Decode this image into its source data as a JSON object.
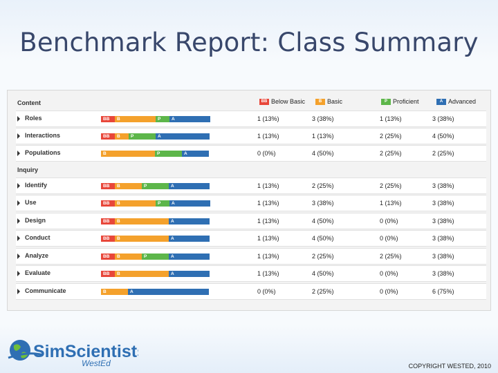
{
  "slide": {
    "title": "Benchmark Report: Class Summary",
    "copyright": "COPYRIGHT WESTED, 2010"
  },
  "logo": {
    "name": "SimScientists",
    "sub": "WestEd"
  },
  "colors": {
    "below_basic": "#e8473a",
    "basic": "#f4a12c",
    "proficient": "#5db64a",
    "advanced": "#2f6fb3"
  },
  "header": {
    "content": "Content",
    "legend": [
      {
        "abbr": "BB",
        "label": "Below Basic",
        "color": "#e8473a"
      },
      {
        "abbr": "B",
        "label": "Basic",
        "color": "#f4a12c"
      },
      {
        "abbr": "P",
        "label": "Proficient",
        "color": "#5db64a"
      },
      {
        "abbr": "A",
        "label": "Advanced",
        "color": "#2f6fb3"
      }
    ]
  },
  "rows": [
    {
      "type": "data",
      "label": "Roles",
      "bb": "1 (13%)",
      "b": "3 (38%)",
      "p": "1 (13%)",
      "a": "3 (38%)",
      "fractions": [
        0.13,
        0.38,
        0.13,
        0.38
      ]
    },
    {
      "type": "data",
      "label": "Interactions",
      "bb": "1 (13%)",
      "b": "1 (13%)",
      "p": "2 (25%)",
      "a": "4 (50%)",
      "fractions": [
        0.13,
        0.13,
        0.25,
        0.5
      ]
    },
    {
      "type": "data",
      "label": "Populations",
      "bb": "0 (0%)",
      "b": "4 (50%)",
      "p": "2 (25%)",
      "a": "2 (25%)",
      "fractions": [
        0,
        0.5,
        0.25,
        0.25
      ]
    },
    {
      "type": "section",
      "label": "Inquiry"
    },
    {
      "type": "data",
      "label": "Identify",
      "bb": "1 (13%)",
      "b": "2 (25%)",
      "p": "2 (25%)",
      "a": "3 (38%)",
      "fractions": [
        0.13,
        0.25,
        0.25,
        0.38
      ]
    },
    {
      "type": "data",
      "label": "Use",
      "bb": "1 (13%)",
      "b": "3 (38%)",
      "p": "1 (13%)",
      "a": "3 (38%)",
      "fractions": [
        0.13,
        0.38,
        0.13,
        0.38
      ]
    },
    {
      "type": "data",
      "label": "Design",
      "bb": "1 (13%)",
      "b": "4 (50%)",
      "p": "0 (0%)",
      "a": "3 (38%)",
      "fractions": [
        0.13,
        0.5,
        0,
        0.38
      ]
    },
    {
      "type": "data",
      "label": "Conduct",
      "bb": "1 (13%)",
      "b": "4 (50%)",
      "p": "0 (0%)",
      "a": "3 (38%)",
      "fractions": [
        0.13,
        0.5,
        0,
        0.38
      ]
    },
    {
      "type": "data",
      "label": "Analyze",
      "bb": "1 (13%)",
      "b": "2 (25%)",
      "p": "2 (25%)",
      "a": "3 (38%)",
      "fractions": [
        0.13,
        0.25,
        0.25,
        0.38
      ]
    },
    {
      "type": "data",
      "label": "Evaluate",
      "bb": "1 (13%)",
      "b": "4 (50%)",
      "p": "0 (0%)",
      "a": "3 (38%)",
      "fractions": [
        0.13,
        0.5,
        0,
        0.38
      ]
    },
    {
      "type": "data",
      "label": "Communicate",
      "bb": "0 (0%)",
      "b": "2 (25%)",
      "p": "0 (0%)",
      "a": "6 (75%)",
      "fractions": [
        0,
        0.25,
        0,
        0.75
      ]
    }
  ]
}
